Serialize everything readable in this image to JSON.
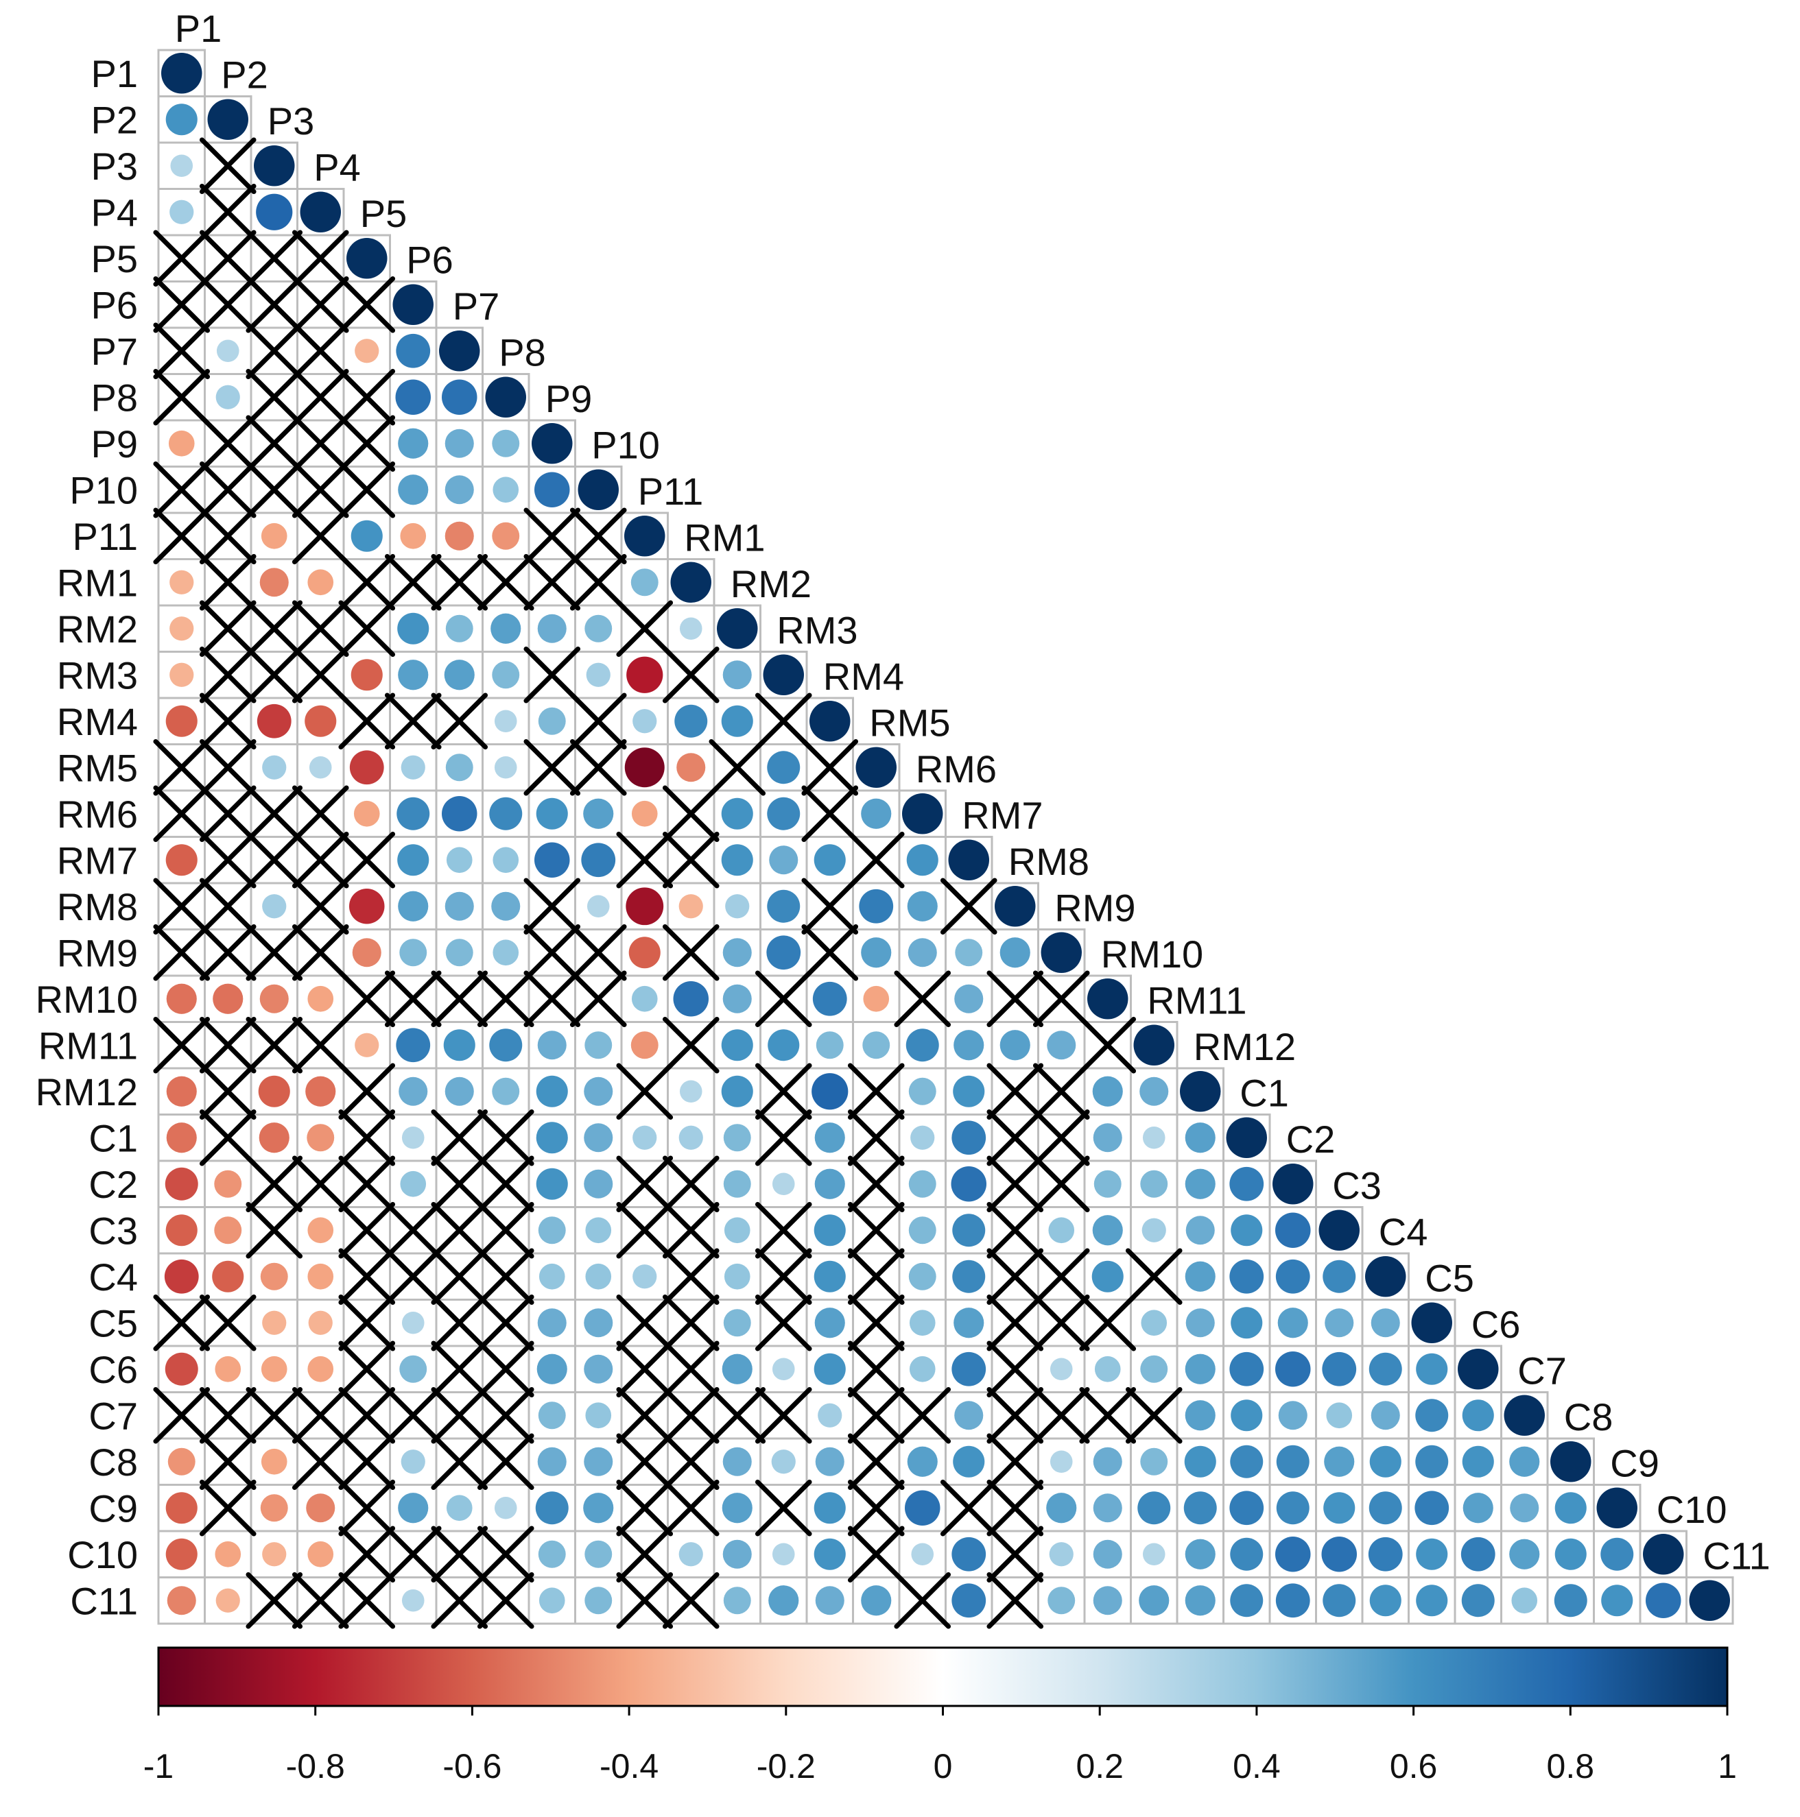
{
  "chart_data": {
    "type": "heatmap",
    "variables": [
      "P1",
      "P2",
      "P3",
      "P4",
      "P5",
      "P6",
      "P7",
      "P8",
      "P9",
      "P10",
      "P11",
      "RM1",
      "RM2",
      "RM3",
      "RM4",
      "RM5",
      "RM6",
      "RM7",
      "RM8",
      "RM9",
      "RM10",
      "RM11",
      "RM12",
      "C1",
      "C2",
      "C3",
      "C4",
      "C5",
      "C6",
      "C7",
      "C8",
      "C9",
      "C10",
      "C11"
    ],
    "colorbar": {
      "ticks": [
        "-1",
        "-0.8",
        "-0.6",
        "-0.4",
        "-0.2",
        "0",
        "0.2",
        "0.4",
        "0.6",
        "0.8",
        "1"
      ],
      "range": [
        -1,
        1
      ],
      "colors": [
        "#67001f",
        "#b2182b",
        "#d6604d",
        "#f4a582",
        "#fddbc7",
        "#ffffff",
        "#d1e5f0",
        "#92c5de",
        "#4393c3",
        "#2166ac",
        "#053061"
      ]
    },
    "rows": [
      {
        "row": "P1",
        "values": [
          1
        ]
      },
      {
        "row": "P2",
        "values": [
          0.6,
          1
        ]
      },
      {
        "row": "P3",
        "values": [
          0.3,
          null,
          1
        ]
      },
      {
        "row": "P4",
        "values": [
          0.35,
          null,
          0.8,
          1
        ]
      },
      {
        "row": "P5",
        "values": [
          null,
          null,
          null,
          null,
          1
        ]
      },
      {
        "row": "P6",
        "values": [
          null,
          null,
          null,
          null,
          null,
          1
        ]
      },
      {
        "row": "P7",
        "values": [
          null,
          0.3,
          null,
          null,
          -0.35,
          0.7,
          1
        ]
      },
      {
        "row": "P8",
        "values": [
          null,
          0.35,
          null,
          null,
          null,
          0.75,
          0.75,
          1
        ]
      },
      {
        "row": "P9",
        "values": [
          -0.4,
          null,
          null,
          null,
          null,
          0.55,
          0.5,
          0.45,
          1
        ]
      },
      {
        "row": "P10",
        "values": [
          null,
          null,
          null,
          null,
          null,
          0.55,
          0.5,
          0.4,
          0.75,
          1
        ]
      },
      {
        "row": "P11",
        "values": [
          null,
          null,
          -0.4,
          null,
          0.6,
          -0.4,
          -0.5,
          -0.45,
          null,
          null,
          1
        ]
      },
      {
        "row": "RM1",
        "values": [
          -0.35,
          null,
          -0.5,
          -0.4,
          null,
          null,
          null,
          null,
          null,
          null,
          0.45,
          1
        ]
      },
      {
        "row": "RM2",
        "values": [
          -0.35,
          null,
          null,
          null,
          null,
          0.6,
          0.45,
          0.55,
          0.5,
          0.45,
          null,
          0.3,
          1
        ]
      },
      {
        "row": "RM3",
        "values": [
          -0.35,
          null,
          null,
          null,
          -0.6,
          0.55,
          0.55,
          0.45,
          null,
          0.35,
          -0.8,
          null,
          0.5,
          1
        ]
      },
      {
        "row": "RM4",
        "values": [
          -0.6,
          null,
          -0.7,
          -0.6,
          null,
          null,
          null,
          0.3,
          0.45,
          null,
          0.35,
          0.65,
          0.6,
          null,
          1
        ]
      },
      {
        "row": "RM5",
        "values": [
          null,
          null,
          0.35,
          0.3,
          -0.7,
          0.35,
          0.45,
          0.3,
          null,
          null,
          -0.95,
          -0.5,
          null,
          0.65,
          null,
          1
        ]
      },
      {
        "row": "RM6",
        "values": [
          null,
          null,
          null,
          null,
          -0.4,
          0.65,
          0.75,
          0.65,
          0.6,
          0.55,
          -0.4,
          null,
          0.6,
          0.65,
          null,
          0.55,
          1
        ]
      },
      {
        "row": "RM7",
        "values": [
          -0.6,
          null,
          null,
          null,
          null,
          0.6,
          0.4,
          0.4,
          0.75,
          0.7,
          null,
          null,
          0.6,
          0.5,
          0.6,
          null,
          0.6,
          1
        ]
      },
      {
        "row": "RM8",
        "values": [
          null,
          null,
          0.35,
          null,
          -0.75,
          0.55,
          0.5,
          0.5,
          null,
          0.3,
          -0.85,
          -0.35,
          0.35,
          0.65,
          null,
          0.7,
          0.55,
          null,
          1
        ]
      },
      {
        "row": "RM9",
        "values": [
          null,
          null,
          null,
          null,
          -0.5,
          0.45,
          0.45,
          0.4,
          null,
          null,
          -0.6,
          null,
          0.5,
          0.7,
          null,
          0.55,
          0.5,
          0.45,
          0.55,
          1
        ]
      },
      {
        "row": "RM10",
        "values": [
          -0.55,
          -0.55,
          -0.5,
          -0.4,
          null,
          null,
          null,
          null,
          null,
          null,
          0.4,
          0.75,
          0.5,
          null,
          0.7,
          -0.4,
          null,
          0.5,
          null,
          null,
          1
        ]
      },
      {
        "row": "RM11",
        "values": [
          null,
          null,
          null,
          null,
          -0.35,
          0.7,
          0.6,
          0.65,
          0.5,
          0.45,
          -0.45,
          null,
          0.6,
          0.6,
          0.45,
          0.45,
          0.65,
          0.55,
          0.55,
          0.5,
          null,
          1
        ]
      },
      {
        "row": "RM12",
        "values": [
          -0.55,
          null,
          -0.6,
          -0.55,
          null,
          0.5,
          0.5,
          0.45,
          0.6,
          0.5,
          null,
          0.3,
          0.6,
          null,
          0.8,
          null,
          0.45,
          0.6,
          null,
          null,
          0.55,
          0.5,
          1
        ]
      },
      {
        "row": "C1",
        "values": [
          -0.55,
          null,
          -0.55,
          -0.45,
          null,
          0.3,
          null,
          null,
          0.6,
          0.5,
          0.35,
          0.35,
          0.45,
          null,
          0.55,
          null,
          0.35,
          0.7,
          null,
          null,
          0.5,
          0.3,
          0.55,
          1
        ]
      },
      {
        "row": "C2",
        "values": [
          -0.65,
          -0.45,
          null,
          null,
          null,
          0.4,
          null,
          null,
          0.6,
          0.5,
          null,
          null,
          0.45,
          0.3,
          0.55,
          null,
          0.45,
          0.75,
          null,
          null,
          0.45,
          0.45,
          0.55,
          0.7,
          1
        ]
      },
      {
        "row": "C3",
        "values": [
          -0.6,
          -0.45,
          null,
          -0.4,
          null,
          null,
          null,
          null,
          0.45,
          0.4,
          null,
          null,
          0.4,
          null,
          0.6,
          null,
          0.45,
          0.65,
          null,
          0.4,
          0.55,
          0.35,
          0.5,
          0.6,
          0.75,
          1
        ]
      },
      {
        "row": "C4",
        "values": [
          -0.7,
          -0.6,
          -0.45,
          -0.4,
          null,
          null,
          null,
          null,
          0.4,
          0.4,
          0.35,
          null,
          0.4,
          null,
          0.6,
          null,
          0.45,
          0.65,
          null,
          null,
          0.6,
          null,
          0.55,
          0.7,
          0.7,
          0.65,
          1
        ]
      },
      {
        "row": "C5",
        "values": [
          null,
          null,
          -0.35,
          -0.35,
          null,
          0.3,
          null,
          null,
          0.5,
          0.5,
          null,
          null,
          0.45,
          null,
          0.55,
          null,
          0.4,
          0.55,
          null,
          null,
          null,
          0.4,
          0.5,
          0.6,
          0.55,
          0.5,
          0.5,
          1
        ]
      },
      {
        "row": "C6",
        "values": [
          -0.65,
          -0.4,
          -0.4,
          -0.4,
          null,
          0.45,
          null,
          null,
          0.55,
          0.5,
          null,
          null,
          0.55,
          0.3,
          0.6,
          null,
          0.4,
          0.7,
          null,
          0.3,
          0.4,
          0.45,
          0.55,
          0.7,
          0.75,
          0.7,
          0.65,
          0.6,
          1
        ]
      },
      {
        "row": "C7",
        "values": [
          null,
          null,
          null,
          null,
          null,
          null,
          null,
          null,
          0.45,
          0.4,
          null,
          null,
          null,
          null,
          0.35,
          null,
          null,
          0.5,
          null,
          null,
          null,
          null,
          0.55,
          0.6,
          0.5,
          0.4,
          0.5,
          0.65,
          0.6,
          1
        ]
      },
      {
        "row": "C8",
        "values": [
          -0.45,
          null,
          -0.4,
          null,
          null,
          0.35,
          null,
          null,
          0.5,
          0.5,
          null,
          null,
          0.5,
          0.35,
          0.5,
          null,
          0.55,
          0.6,
          null,
          0.3,
          0.5,
          0.45,
          0.6,
          0.65,
          0.65,
          0.55,
          0.6,
          0.65,
          0.6,
          0.55,
          1
        ]
      },
      {
        "row": "C9",
        "values": [
          -0.6,
          null,
          -0.45,
          -0.5,
          null,
          0.55,
          0.4,
          0.3,
          0.65,
          0.55,
          null,
          null,
          0.55,
          null,
          0.6,
          null,
          0.75,
          null,
          null,
          0.55,
          0.5,
          0.65,
          0.65,
          0.7,
          0.65,
          0.6,
          0.65,
          0.7,
          0.55,
          0.5,
          0.6,
          1
        ]
      },
      {
        "row": "C10",
        "values": [
          -0.6,
          -0.4,
          -0.35,
          -0.4,
          null,
          null,
          null,
          null,
          0.45,
          0.45,
          null,
          0.35,
          0.5,
          0.3,
          0.6,
          null,
          0.3,
          0.7,
          null,
          0.35,
          0.5,
          0.3,
          0.55,
          0.65,
          0.75,
          0.75,
          0.7,
          0.6,
          0.7,
          0.55,
          0.6,
          0.65,
          1
        ]
      },
      {
        "row": "C11",
        "values": [
          -0.5,
          -0.35,
          null,
          null,
          null,
          0.3,
          null,
          null,
          0.4,
          0.45,
          null,
          null,
          0.45,
          0.55,
          0.5,
          0.55,
          null,
          0.7,
          null,
          0.45,
          0.5,
          0.55,
          0.55,
          0.65,
          0.7,
          0.65,
          0.6,
          0.6,
          0.65,
          0.4,
          0.65,
          0.6,
          0.75,
          1
        ]
      }
    ]
  }
}
